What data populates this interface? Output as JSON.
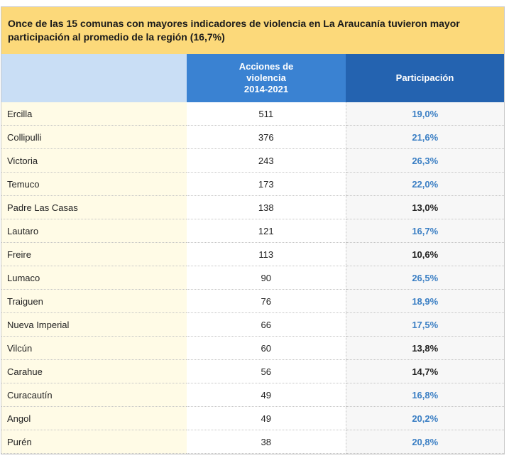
{
  "title": "Once de las 15 comunas con mayores indicadores de violencia en La Araucanía tuvieron mayor participación al promedio de la región (16,7%)",
  "colors": {
    "above_average": "#3b7fc4",
    "below_average": "#222222",
    "header_blue": "#2463b0",
    "title_bg": "#fcd97a"
  },
  "chart_data": {
    "type": "table",
    "columns": [
      "",
      "Acciones de violencia 2014-2021",
      "Participación"
    ],
    "column_header_lines": [
      [
        ""
      ],
      [
        "Acciones de",
        "violencia",
        "2014-2021"
      ],
      [
        "Participación"
      ]
    ],
    "rows": [
      {
        "comuna": "Ercilla",
        "acciones": "511",
        "participacion": "19,0%",
        "above_average": true
      },
      {
        "comuna": "Collipulli",
        "acciones": "376",
        "participacion": "21,6%",
        "above_average": true
      },
      {
        "comuna": "Victoria",
        "acciones": "243",
        "participacion": "26,3%",
        "above_average": true
      },
      {
        "comuna": "Temuco",
        "acciones": "173",
        "participacion": "22,0%",
        "above_average": true
      },
      {
        "comuna": "Padre Las Casas",
        "acciones": "138",
        "participacion": "13,0%",
        "above_average": false
      },
      {
        "comuna": "Lautaro",
        "acciones": "121",
        "participacion": "16,7%",
        "above_average": true
      },
      {
        "comuna": "Freire",
        "acciones": "113",
        "participacion": "10,6%",
        "above_average": false
      },
      {
        "comuna": "Lumaco",
        "acciones": "90",
        "participacion": "26,5%",
        "above_average": true
      },
      {
        "comuna": "Traiguen",
        "acciones": "76",
        "participacion": "18,9%",
        "above_average": true
      },
      {
        "comuna": "Nueva Imperial",
        "acciones": "66",
        "participacion": "17,5%",
        "above_average": true
      },
      {
        "comuna": "Vilcún",
        "acciones": "60",
        "participacion": "13,8%",
        "above_average": false
      },
      {
        "comuna": "Carahue",
        "acciones": "56",
        "participacion": "14,7%",
        "above_average": false
      },
      {
        "comuna": "Curacautín",
        "acciones": "49",
        "participacion": "16,8%",
        "above_average": true
      },
      {
        "comuna": "Angol",
        "acciones": "49",
        "participacion": "20,2%",
        "above_average": true
      },
      {
        "comuna": "Purén",
        "acciones": "38",
        "participacion": "20,8%",
        "above_average": true
      }
    ]
  }
}
